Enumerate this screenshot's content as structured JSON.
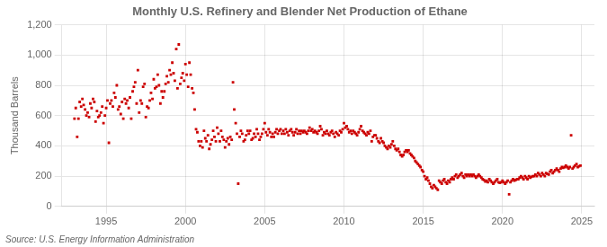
{
  "chart_data": {
    "type": "scatter",
    "title": "Monthly U.S. Refinery and Blender Net Production of Ethane",
    "ylabel": "Thousand Barrels",
    "source": "Source: U.S. Energy Information Administration",
    "color": "#cc0000",
    "marker": "square",
    "grid": true,
    "xlim": [
      1992.2,
      2025.8
    ],
    "ylim": [
      0,
      1200
    ],
    "xticks": [
      1995,
      2000,
      2005,
      2010,
      2015,
      2020,
      2025
    ],
    "yticks": [
      0,
      200,
      400,
      600,
      800,
      {
        "value": 1000,
        "label": "1,000"
      },
      {
        "value": 1200,
        "label": "1,200"
      }
    ],
    "x": [
      1993.0,
      1993.08,
      1993.17,
      1993.25,
      1993.33,
      1993.42,
      1993.5,
      1993.58,
      1993.67,
      1993.75,
      1993.83,
      1993.92,
      1994.0,
      1994.08,
      1994.17,
      1994.25,
      1994.33,
      1994.42,
      1994.5,
      1994.58,
      1994.67,
      1994.75,
      1994.83,
      1994.92,
      1995.0,
      1995.08,
      1995.17,
      1995.25,
      1995.33,
      1995.42,
      1995.5,
      1995.58,
      1995.67,
      1995.75,
      1995.83,
      1995.92,
      1996.0,
      1996.08,
      1996.17,
      1996.25,
      1996.33,
      1996.42,
      1996.5,
      1996.58,
      1996.67,
      1996.75,
      1996.83,
      1996.92,
      1997.0,
      1997.08,
      1997.17,
      1997.25,
      1997.33,
      1997.42,
      1997.5,
      1997.58,
      1997.67,
      1997.75,
      1997.83,
      1997.92,
      1998.0,
      1998.08,
      1998.17,
      1998.25,
      1998.33,
      1998.42,
      1998.5,
      1998.58,
      1998.67,
      1998.75,
      1998.83,
      1998.92,
      1999.0,
      1999.08,
      1999.17,
      1999.25,
      1999.33,
      1999.42,
      1999.5,
      1999.58,
      1999.67,
      1999.75,
      1999.83,
      1999.92,
      2000.0,
      2000.08,
      2000.17,
      2000.25,
      2000.33,
      2000.42,
      2000.5,
      2000.58,
      2000.67,
      2000.75,
      2000.83,
      2000.92,
      2001.0,
      2001.08,
      2001.17,
      2001.25,
      2001.33,
      2001.42,
      2001.5,
      2001.58,
      2001.67,
      2001.75,
      2001.83,
      2001.92,
      2002.0,
      2002.08,
      2002.17,
      2002.25,
      2002.33,
      2002.42,
      2002.5,
      2002.58,
      2002.67,
      2002.75,
      2002.83,
      2002.92,
      2003.0,
      2003.08,
      2003.17,
      2003.25,
      2003.33,
      2003.42,
      2003.5,
      2003.58,
      2003.67,
      2003.75,
      2003.83,
      2003.92,
      2004.0,
      2004.08,
      2004.17,
      2004.25,
      2004.33,
      2004.42,
      2004.5,
      2004.58,
      2004.67,
      2004.75,
      2004.83,
      2004.92,
      2005.0,
      2005.08,
      2005.17,
      2005.25,
      2005.33,
      2005.42,
      2005.5,
      2005.58,
      2005.67,
      2005.75,
      2005.83,
      2005.92,
      2006.0,
      2006.08,
      2006.17,
      2006.25,
      2006.33,
      2006.42,
      2006.5,
      2006.58,
      2006.67,
      2006.75,
      2006.83,
      2006.92,
      2007.0,
      2007.08,
      2007.17,
      2007.25,
      2007.33,
      2007.42,
      2007.5,
      2007.58,
      2007.67,
      2007.75,
      2007.83,
      2007.92,
      2008.0,
      2008.08,
      2008.17,
      2008.25,
      2008.33,
      2008.42,
      2008.5,
      2008.58,
      2008.67,
      2008.75,
      2008.83,
      2008.92,
      2009.0,
      2009.08,
      2009.17,
      2009.25,
      2009.33,
      2009.42,
      2009.5,
      2009.58,
      2009.67,
      2009.75,
      2009.83,
      2009.92,
      2010.0,
      2010.08,
      2010.17,
      2010.25,
      2010.33,
      2010.42,
      2010.5,
      2010.58,
      2010.67,
      2010.75,
      2010.83,
      2010.92,
      2011.0,
      2011.08,
      2011.17,
      2011.25,
      2011.33,
      2011.42,
      2011.5,
      2011.58,
      2011.67,
      2011.75,
      2011.83,
      2011.92,
      2012.0,
      2012.08,
      2012.17,
      2012.25,
      2012.33,
      2012.42,
      2012.5,
      2012.58,
      2012.67,
      2012.75,
      2012.83,
      2012.92,
      2013.0,
      2013.08,
      2013.17,
      2013.25,
      2013.33,
      2013.42,
      2013.5,
      2013.58,
      2013.67,
      2013.75,
      2013.83,
      2013.92,
      2014.0,
      2014.08,
      2014.17,
      2014.25,
      2014.33,
      2014.42,
      2014.5,
      2014.58,
      2014.67,
      2014.75,
      2014.83,
      2014.92,
      2015.0,
      2015.08,
      2015.17,
      2015.25,
      2015.33,
      2015.42,
      2015.5,
      2015.58,
      2015.67,
      2015.75,
      2015.83,
      2015.92,
      2016.0,
      2016.08,
      2016.17,
      2016.25,
      2016.33,
      2016.42,
      2016.5,
      2016.58,
      2016.67,
      2016.75,
      2016.83,
      2016.92,
      2017.0,
      2017.08,
      2017.17,
      2017.25,
      2017.33,
      2017.42,
      2017.5,
      2017.58,
      2017.67,
      2017.75,
      2017.83,
      2017.92,
      2018.0,
      2018.08,
      2018.17,
      2018.25,
      2018.33,
      2018.42,
      2018.5,
      2018.58,
      2018.67,
      2018.75,
      2018.83,
      2018.92,
      2019.0,
      2019.08,
      2019.17,
      2019.25,
      2019.33,
      2019.42,
      2019.5,
      2019.58,
      2019.67,
      2019.75,
      2019.83,
      2019.92,
      2020.0,
      2020.08,
      2020.17,
      2020.25,
      2020.33,
      2020.42,
      2020.5,
      2020.58,
      2020.67,
      2020.75,
      2020.83,
      2020.92,
      2021.0,
      2021.08,
      2021.17,
      2021.25,
      2021.33,
      2021.42,
      2021.5,
      2021.58,
      2021.67,
      2021.75,
      2021.83,
      2021.92,
      2022.0,
      2022.08,
      2022.17,
      2022.25,
      2022.33,
      2022.42,
      2022.5,
      2022.58,
      2022.67,
      2022.75,
      2022.83,
      2022.92,
      2023.0,
      2023.08,
      2023.17,
      2023.25,
      2023.33,
      2023.42,
      2023.5,
      2023.58,
      2023.67,
      2023.75,
      2023.83,
      2023.92,
      2024.0,
      2024.08,
      2024.17,
      2024.25,
      2024.33,
      2024.42,
      2024.5,
      2024.58,
      2024.67,
      2024.75,
      2024.83,
      2024.92
    ],
    "values": [
      580,
      650,
      460,
      580,
      690,
      660,
      710,
      670,
      640,
      600,
      620,
      590,
      680,
      650,
      710,
      690,
      560,
      630,
      590,
      600,
      620,
      660,
      550,
      600,
      650,
      700,
      420,
      680,
      700,
      660,
      750,
      720,
      800,
      640,
      660,
      610,
      690,
      580,
      710,
      680,
      700,
      650,
      720,
      580,
      760,
      790,
      820,
      680,
      900,
      620,
      700,
      680,
      790,
      810,
      590,
      660,
      650,
      700,
      750,
      710,
      840,
      780,
      790,
      870,
      800,
      680,
      760,
      720,
      760,
      810,
      860,
      820,
      900,
      870,
      950,
      880,
      830,
      1040,
      780,
      1070,
      810,
      850,
      880,
      830,
      940,
      870,
      790,
      950,
      870,
      780,
      750,
      640,
      510,
      490,
      430,
      400,
      430,
      390,
      500,
      450,
      430,
      470,
      380,
      410,
      440,
      500,
      460,
      430,
      520,
      480,
      430,
      500,
      460,
      440,
      390,
      430,
      450,
      410,
      460,
      440,
      820,
      640,
      550,
      480,
      150,
      460,
      500,
      480,
      430,
      440,
      470,
      500,
      480,
      500,
      440,
      450,
      480,
      460,
      510,
      480,
      440,
      460,
      480,
      510,
      550,
      490,
      470,
      510,
      490,
      460,
      480,
      460,
      490,
      510,
      480,
      500,
      510,
      480,
      500,
      480,
      510,
      490,
      470,
      500,
      510,
      490,
      470,
      490,
      510,
      480,
      500,
      480,
      500,
      490,
      500,
      490,
      480,
      500,
      520,
      500,
      510,
      490,
      500,
      490,
      480,
      500,
      530,
      510,
      470,
      490,
      480,
      500,
      480,
      470,
      490,
      500,
      480,
      460,
      490,
      480,
      470,
      500,
      490,
      510,
      550,
      520,
      530,
      510,
      490,
      500,
      480,
      500,
      490,
      480,
      470,
      490,
      510,
      530,
      500,
      490,
      480,
      470,
      490,
      480,
      500,
      430,
      460,
      470,
      470,
      450,
      430,
      420,
      450,
      430,
      420,
      400,
      390,
      380,
      400,
      390,
      410,
      430,
      400,
      380,
      370,
      380,
      360,
      340,
      330,
      340,
      360,
      370,
      360,
      370,
      350,
      340,
      330,
      320,
      300,
      290,
      280,
      270,
      260,
      240,
      230,
      200,
      180,
      190,
      170,
      150,
      130,
      120,
      140,
      130,
      120,
      110,
      170,
      160,
      150,
      170,
      180,
      160,
      150,
      170,
      160,
      180,
      190,
      180,
      200,
      210,
      190,
      200,
      210,
      220,
      200,
      190,
      210,
      200,
      210,
      200,
      210,
      200,
      210,
      200,
      190,
      200,
      210,
      200,
      190,
      180,
      175,
      165,
      170,
      160,
      180,
      170,
      160,
      150,
      160,
      170,
      180,
      160,
      155,
      160,
      170,
      160,
      150,
      160,
      170,
      80,
      160,
      170,
      180,
      170,
      175,
      180,
      180,
      190,
      200,
      190,
      180,
      200,
      190,
      180,
      200,
      190,
      195,
      200,
      200,
      210,
      200,
      220,
      210,
      200,
      220,
      210,
      200,
      220,
      215,
      210,
      230,
      240,
      220,
      230,
      240,
      250,
      240,
      230,
      250,
      260,
      255,
      260,
      270,
      260,
      250,
      260,
      470,
      250,
      260,
      270,
      280,
      260,
      265,
      270
    ]
  }
}
